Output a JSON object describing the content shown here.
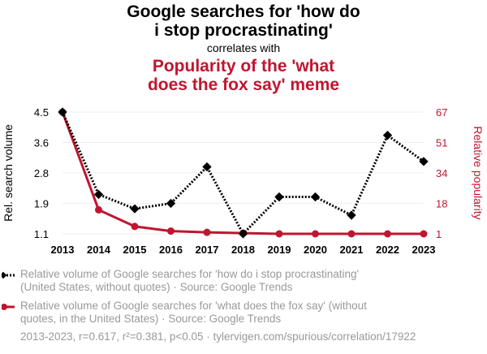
{
  "title_main": "Google searches for 'how do i stop procrastinating'",
  "title_main_lines": [
    "Google searches for 'how do",
    "i stop procrastinating'"
  ],
  "title_connector": "correlates with",
  "title_second_lines": [
    "Popularity of the 'what",
    "does the fox say' meme"
  ],
  "colors": {
    "series1": "#000000",
    "series2": "#C0152F",
    "grid": "#eeeeee",
    "muted": "#999999"
  },
  "chart_data": {
    "type": "line",
    "title": "Google searches for 'how do i stop procrastinating' correlates with Popularity of the 'what does the fox say' meme",
    "x": [
      2013,
      2014,
      2015,
      2016,
      2017,
      2018,
      2019,
      2020,
      2021,
      2022,
      2023
    ],
    "xlabel": "",
    "ylabel": "Rel. search volume",
    "ylabel_right": "Relative popularity",
    "ylim": [
      1.1,
      4.5
    ],
    "ylim_right": [
      1,
      67
    ],
    "yticks": [
      "4.5",
      "3.6",
      "2.8",
      "1.9",
      "1.1"
    ],
    "yticks_right": [
      "67",
      "51",
      "34",
      "18",
      "1"
    ],
    "series": [
      {
        "name": "Relative volume of Google searches for 'how do i stop procrastinating' (United States, without quotes) · Source: Google Trends",
        "axis": "left",
        "style": "dotted",
        "marker": "diamond",
        "values": [
          4.5,
          2.2,
          1.8,
          1.95,
          2.97,
          1.1,
          2.13,
          2.13,
          1.62,
          3.85,
          3.12
        ]
      },
      {
        "name": "Relative volume of Google searches for 'what does the fox say' (without quotes, in the United States) · Source: Google Trends",
        "axis": "right",
        "style": "solid",
        "marker": "circle",
        "values": [
          67,
          14,
          5,
          2.5,
          1.8,
          1.4,
          1,
          1,
          1,
          1,
          1
        ]
      }
    ],
    "legend": {
      "s1_lines": [
        "Relative volume of Google searches for 'how do i stop procrastinating'",
        "(United States, without quotes) · Source: Google Trends"
      ],
      "s2_lines": [
        "Relative volume of Google searches for 'what does the fox say' (without",
        "quotes, in the United States) · Source: Google Trends"
      ]
    },
    "footer": "2013-2023, r=0.617, r²=0.381, p<0.05 · tylervigen.com/spurious/correlation/17922"
  }
}
